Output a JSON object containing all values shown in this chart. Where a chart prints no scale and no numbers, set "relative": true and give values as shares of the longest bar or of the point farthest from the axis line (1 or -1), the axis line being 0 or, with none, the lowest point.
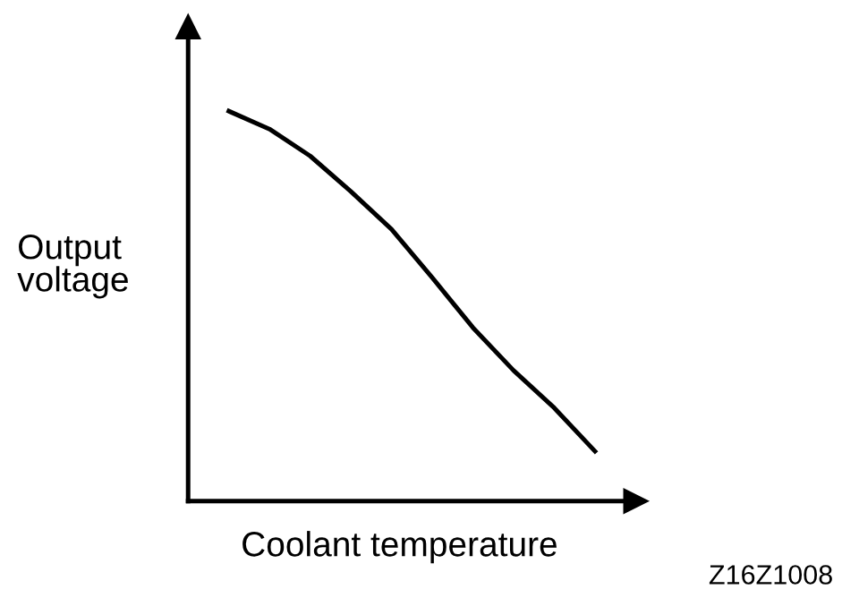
{
  "chart_data": {
    "type": "line",
    "relative": true,
    "xlabel": "Coolant temperature",
    "ylabel": "Output voltage",
    "annotations": [
      "Z16Z1008"
    ],
    "categories": [
      null,
      null,
      null,
      null,
      null,
      null,
      null,
      null,
      null,
      null
    ],
    "series": [
      {
        "color": "#000000",
        "values": [
          1,
          0.954,
          0.885,
          0.794,
          0.697,
          0.573,
          0.445,
          0.335,
          0.239,
          0.128
        ]
      }
    ],
    "legend": false,
    "marker": "none",
    "line_style": "solid"
  }
}
